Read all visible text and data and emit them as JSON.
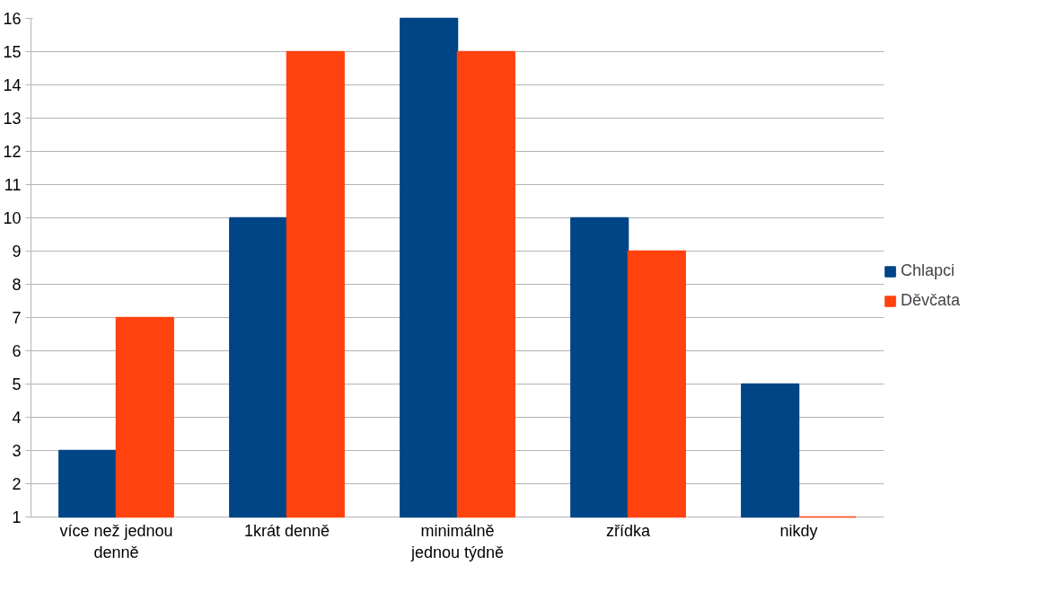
{
  "chart_data": {
    "type": "bar",
    "categories": [
      "více než jednou denně",
      "1krát denně",
      "minimálně jednou týdně",
      "zřídka",
      "nikdy"
    ],
    "series": [
      {
        "name": "Chlapci",
        "color": "#004586",
        "values": [
          3,
          10,
          16,
          10,
          5
        ]
      },
      {
        "name": "Děvčata",
        "color": "#ff420e",
        "values": [
          7,
          15,
          15,
          9,
          1
        ]
      }
    ],
    "ylim": [
      1,
      16
    ],
    "yticks": [
      1,
      2,
      3,
      4,
      5,
      6,
      7,
      8,
      9,
      10,
      11,
      12,
      13,
      14,
      15,
      16
    ],
    "grid": "y",
    "legend": "right"
  }
}
